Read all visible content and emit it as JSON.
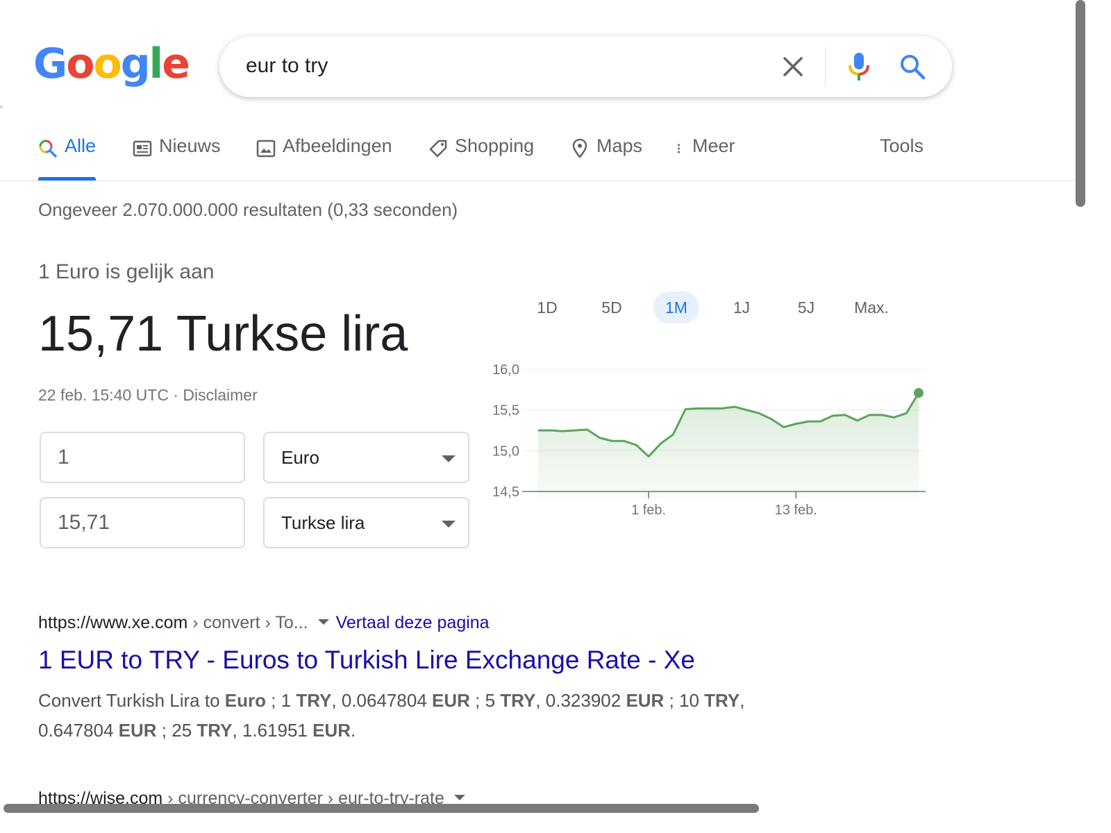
{
  "logo": {
    "letters": [
      "G",
      "o",
      "o",
      "g",
      "l",
      "e"
    ],
    "colors": [
      "#4285f4",
      "#ea4335",
      "#fbbc05",
      "#4285f4",
      "#34a853",
      "#ea4335"
    ]
  },
  "search": {
    "query": "eur to try"
  },
  "tabs": [
    {
      "label": "Alle",
      "icon": "search-icon",
      "active": true
    },
    {
      "label": "Nieuws",
      "icon": "news-icon"
    },
    {
      "label": "Afbeeldingen",
      "icon": "image-icon"
    },
    {
      "label": "Shopping",
      "icon": "tag-icon"
    },
    {
      "label": "Maps",
      "icon": "map-pin-icon"
    },
    {
      "label": "Meer",
      "icon": "more-vertical-icon"
    }
  ],
  "tools_label": "Tools",
  "result_stats": "Ongeveer 2.070.000.000 resultaten (0,33 seconden)",
  "converter": {
    "label": "1 Euro is gelijk aan",
    "value": "15,71 Turkse lira",
    "timestamp": "22 feb. 15:40 UTC",
    "separator": "·",
    "disclaimer": "Disclaimer",
    "from_amount": "1",
    "from_currency": "Euro",
    "to_amount": "15,71",
    "to_currency": "Turkse lira"
  },
  "ranges": [
    {
      "label": "1D"
    },
    {
      "label": "5D"
    },
    {
      "label": "1M",
      "active": true
    },
    {
      "label": "1J"
    },
    {
      "label": "5J"
    },
    {
      "label": "Max."
    }
  ],
  "chart_data": {
    "type": "area",
    "ylim": [
      14.5,
      16.0
    ],
    "yticks": [
      "16,0",
      "15,5",
      "15,0",
      "14,5"
    ],
    "ytick_values": [
      16.0,
      15.5,
      15.0,
      14.5
    ],
    "xticks": [
      {
        "label": "1 feb.",
        "index": 9
      },
      {
        "label": "13 feb.",
        "index": 21
      }
    ],
    "values": [
      15.25,
      15.25,
      15.24,
      15.25,
      15.26,
      15.16,
      15.12,
      15.12,
      15.07,
      14.93,
      15.09,
      15.2,
      15.51,
      15.52,
      15.52,
      15.52,
      15.54,
      15.5,
      15.46,
      15.39,
      15.29,
      15.33,
      15.36,
      15.36,
      15.43,
      15.44,
      15.37,
      15.44,
      15.44,
      15.41,
      15.46,
      15.71
    ],
    "line_color": "#5ba55b",
    "grid": true
  },
  "results": [
    {
      "domain": "https://www.xe.com",
      "breadcrumb": " › convert › To...",
      "translate": "Vertaal deze pagina",
      "title": "1 EUR to TRY - Euros to Turkish Lire Exchange Rate - Xe",
      "snippet": [
        {
          "t": "Convert Turkish Lira to "
        },
        {
          "t": "Euro",
          "b": true
        },
        {
          "t": " ; 1 "
        },
        {
          "t": "TRY",
          "b": true
        },
        {
          "t": ", 0.0647804 "
        },
        {
          "t": "EUR",
          "b": true
        },
        {
          "t": " ; 5 "
        },
        {
          "t": "TRY",
          "b": true
        },
        {
          "t": ", 0.323902 "
        },
        {
          "t": "EUR",
          "b": true
        },
        {
          "t": " ; 10 "
        },
        {
          "t": "TRY",
          "b": true
        },
        {
          "t": ", 0.647804 "
        },
        {
          "t": "EUR",
          "b": true
        },
        {
          "t": " ; 25 "
        },
        {
          "t": "TRY",
          "b": true
        },
        {
          "t": ", 1.61951 "
        },
        {
          "t": "EUR",
          "b": true
        },
        {
          "t": "."
        }
      ]
    },
    {
      "domain": "https://wise.com",
      "breadcrumb": " › currency-converter › eur-to-try-rate"
    }
  ]
}
